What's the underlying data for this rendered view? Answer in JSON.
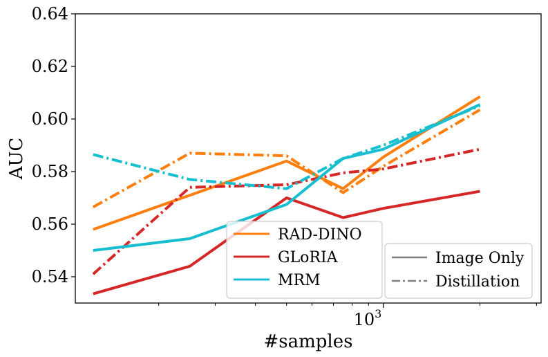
{
  "chart_data": {
    "type": "line",
    "title": "",
    "xlabel": "#samples",
    "ylabel": "AUC",
    "xscale": "log",
    "xlim": [
      110,
      3100
    ],
    "ylim": [
      0.53,
      0.64
    ],
    "x": [
      125,
      250,
      500,
      750,
      1000,
      2000
    ],
    "yticks": [
      0.54,
      0.56,
      0.58,
      0.6,
      0.62,
      0.64
    ],
    "ytick_labels": [
      "0.54",
      "0.56",
      "0.58",
      "0.60",
      "0.62",
      "0.64"
    ],
    "xtick_label": "10",
    "xtick_label_exp": "3",
    "series": [
      {
        "name": "RAD-DINO",
        "color": "#ff7f0e",
        "style": "Image Only",
        "values": [
          0.558,
          0.571,
          0.584,
          0.5735,
          0.5855,
          0.6085
        ]
      },
      {
        "name": "RAD-DINO",
        "color": "#ff7f0e",
        "style": "Distillation",
        "values": [
          0.5665,
          0.587,
          0.586,
          0.572,
          0.582,
          0.6035
        ]
      },
      {
        "name": "GLoRIA",
        "color": "#d62728",
        "style": "Image Only",
        "values": [
          0.5335,
          0.544,
          0.57,
          0.5625,
          0.566,
          0.5725
        ]
      },
      {
        "name": "GLoRIA",
        "color": "#d62728",
        "style": "Distillation",
        "values": [
          0.541,
          0.574,
          0.575,
          0.5795,
          0.581,
          0.5885
        ]
      },
      {
        "name": "MRM",
        "color": "#17becf",
        "style": "Image Only",
        "values": [
          0.55,
          0.5545,
          0.5675,
          0.585,
          0.5885,
          0.6055
        ]
      },
      {
        "name": "MRM",
        "color": "#17becf",
        "style": "Distillation",
        "values": [
          0.5865,
          0.577,
          0.5735,
          0.585,
          0.59,
          0.605
        ]
      }
    ],
    "legend_models": {
      "position": "lower-center",
      "entries": [
        {
          "label": "RAD-DINO",
          "color": "#ff7f0e"
        },
        {
          "label": "GLoRIA",
          "color": "#d62728"
        },
        {
          "label": "MRM",
          "color": "#17becf"
        }
      ]
    },
    "legend_styles": {
      "position": "lower-right",
      "entries": [
        {
          "label": "Image Only",
          "dash": "solid",
          "color": "#7f7f7f"
        },
        {
          "label": "Distillation",
          "dash": "dashdot",
          "color": "#7f7f7f"
        }
      ]
    }
  }
}
